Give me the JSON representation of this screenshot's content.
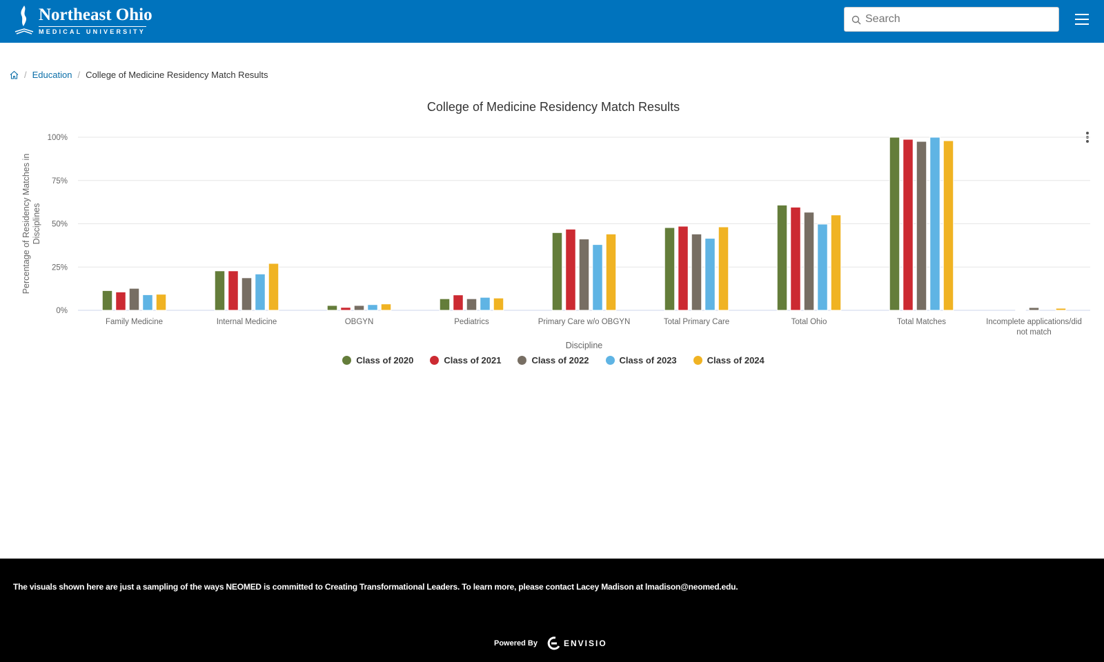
{
  "header": {
    "logo_line1": "Northeast Ohio",
    "logo_line2": "MEDICAL UNIVERSITY",
    "search_placeholder": "Search"
  },
  "breadcrumb": {
    "home_icon": "home-icon",
    "items": [
      "Education",
      "College of Medicine Residency Match Results"
    ]
  },
  "chart_data": {
    "type": "bar",
    "title": "College of Medicine Residency Match Results",
    "xlabel": "Discipline",
    "ylabel": "Percentage of Residency Matches in Disciplines",
    "ylim": [
      0,
      100
    ],
    "yticks": [
      "0%",
      "25%",
      "50%",
      "75%",
      "100%"
    ],
    "grid": true,
    "legend_position": "bottom",
    "categories": [
      "Family Medicine",
      "Internal Medicine",
      "OBGYN",
      "Pediatrics",
      "Primary Care w/o OBGYN",
      "Total Primary Care",
      "Total Ohio",
      "Total Matches",
      "Incomplete applications/did not match"
    ],
    "series": [
      {
        "name": "Class of 2020",
        "color": "#647d3a",
        "values": [
          11.4,
          22.8,
          2.8,
          6.7,
          44.9,
          47.8,
          60.8,
          100,
          0
        ]
      },
      {
        "name": "Class of 2021",
        "color": "#cc2a32",
        "values": [
          10.6,
          22.8,
          1.7,
          8.9,
          46.9,
          48.6,
          59.6,
          98.8,
          0.4
        ]
      },
      {
        "name": "Class of 2022",
        "color": "#776e63",
        "values": [
          12.7,
          18.8,
          2.8,
          6.7,
          41.2,
          44.1,
          56.7,
          97.6,
          1.6
        ]
      },
      {
        "name": "Class of 2023",
        "color": "#5fb4e4",
        "values": [
          9.0,
          21.0,
          3.3,
          7.5,
          38.0,
          41.6,
          49.8,
          100,
          0
        ]
      },
      {
        "name": "Class of 2024",
        "color": "#f0b323",
        "values": [
          9.3,
          27.1,
          3.7,
          7.1,
          44.1,
          48.2,
          55.1,
          98.0,
          1.2
        ]
      }
    ]
  },
  "footer": {
    "message": "The  visuals shown here are just a sampling of the ways NEOMED is committed to Creating Transformational Leaders. To learn more, please contact Lacey Madison at lmadison@neomed.edu.",
    "powered_by": "Powered By",
    "brand": "ENVISIO"
  }
}
